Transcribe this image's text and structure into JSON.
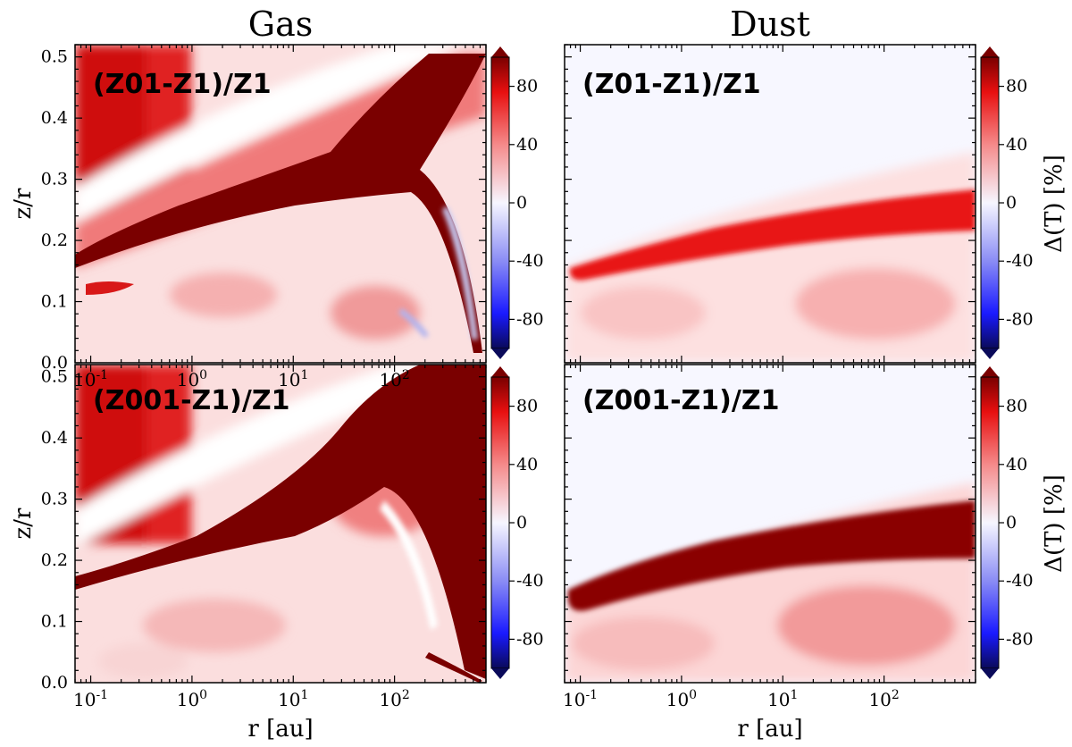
{
  "chart_data": [
    {
      "type": "heatmap",
      "title": "Gas",
      "panel_label": "(Z01-Z1)/Z1",
      "xlabel": "",
      "ylabel": "z/r",
      "x_scale": "log",
      "xlim": [
        0.07,
        800
      ],
      "ylim": [
        0.0,
        0.52
      ],
      "x_ticks": [
        "10-1",
        "100",
        "101",
        "102"
      ],
      "y_ticks": [
        "0.0",
        "0.1",
        "0.2",
        "0.3",
        "0.4",
        "0.5"
      ],
      "colorbar": {
        "label": "",
        "range": [
          -100,
          100
        ],
        "ticks": [
          "80",
          "40",
          "0",
          "-40",
          "-80"
        ],
        "extend": "both",
        "colormap": "seismic"
      },
      "features": [
        {
          "name": "hot wedge",
          "r": [
            0.08,
            700
          ],
          "z_over_r": [
            0.14,
            0.5
          ],
          "delta_T_percent": 100
        },
        {
          "name": "inner upper region",
          "r": [
            0.07,
            0.5
          ],
          "z_over_r": [
            0.28,
            0.52
          ],
          "delta_T_percent": 70
        },
        {
          "name": "cool streak",
          "r": [
            200,
            600
          ],
          "z_over_r": [
            0.02,
            0.25
          ],
          "delta_T_percent": -30
        }
      ]
    },
    {
      "type": "heatmap",
      "title": "Dust",
      "panel_label": "(Z01-Z1)/Z1",
      "xlabel": "",
      "ylabel": "",
      "x_scale": "log",
      "xlim": [
        0.07,
        800
      ],
      "ylim": [
        0.0,
        0.52
      ],
      "colorbar": {
        "label": "Δ(T) [%]",
        "range": [
          -100,
          100
        ],
        "ticks": [
          "80",
          "40",
          "0",
          "-40",
          "-80"
        ],
        "extend": "both",
        "colormap": "seismic"
      },
      "features": [
        {
          "name": "hot band",
          "r": [
            0.08,
            800
          ],
          "z_over_r": [
            0.14,
            0.25
          ],
          "delta_T_percent": 90
        }
      ]
    },
    {
      "type": "heatmap",
      "title": "",
      "panel_label": "(Z001-Z1)/Z1",
      "xlabel": "r [au]",
      "ylabel": "z/r",
      "x_scale": "log",
      "xlim": [
        0.07,
        800
      ],
      "ylim": [
        0.0,
        0.52
      ],
      "x_ticks": [
        "10-1",
        "100",
        "101",
        "102"
      ],
      "y_ticks": [
        "0.0",
        "0.1",
        "0.2",
        "0.3",
        "0.4",
        "0.5"
      ],
      "colorbar": {
        "label": "",
        "range": [
          -100,
          100
        ],
        "ticks": [
          "80",
          "40",
          "0",
          "-40",
          "-80"
        ],
        "extend": "both",
        "colormap": "seismic"
      },
      "features": [
        {
          "name": "hot wedge",
          "r": [
            0.08,
            700
          ],
          "z_over_r": [
            0.13,
            0.52
          ],
          "delta_T_percent": 100
        },
        {
          "name": "inner upper region",
          "r": [
            0.07,
            0.5
          ],
          "z_over_r": [
            0.28,
            0.52
          ],
          "delta_T_percent": 70
        }
      ]
    },
    {
      "type": "heatmap",
      "title": "",
      "panel_label": "(Z001-Z1)/Z1",
      "xlabel": "r [au]",
      "ylabel": "",
      "x_scale": "log",
      "xlim": [
        0.07,
        800
      ],
      "ylim": [
        0.0,
        0.52
      ],
      "x_ticks": [
        "10-1",
        "100",
        "101",
        "102"
      ],
      "colorbar": {
        "label": "Δ(T) [%]",
        "range": [
          -100,
          100
        ],
        "ticks": [
          "80",
          "40",
          "0",
          "-40",
          "-80"
        ],
        "extend": "both",
        "colormap": "seismic"
      },
      "features": [
        {
          "name": "hot band",
          "r": [
            0.08,
            800
          ],
          "z_over_r": [
            0.13,
            0.28
          ],
          "delta_T_percent": 100
        }
      ]
    }
  ]
}
